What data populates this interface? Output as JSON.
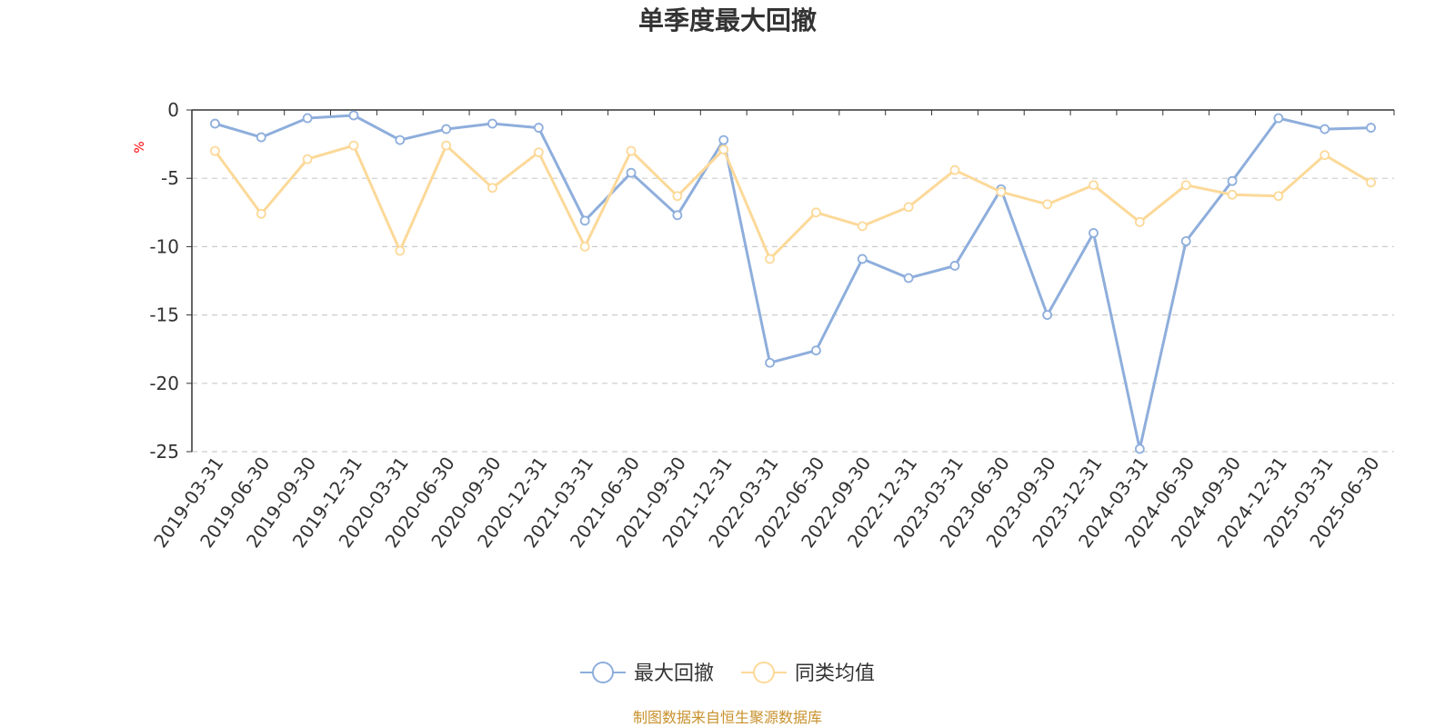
{
  "chart_data": {
    "type": "line",
    "title": "单季度最大回撤",
    "ylabel": "%",
    "ylim": [
      -25,
      0
    ],
    "yticks": [
      0,
      -5,
      -10,
      -15,
      -20,
      -25
    ],
    "grid": true,
    "legend_position": "bottom-center",
    "x": [
      "2019-03-31",
      "2019-06-30",
      "2019-09-30",
      "2019-12-31",
      "2020-03-31",
      "2020-06-30",
      "2020-09-30",
      "2020-12-31",
      "2021-03-31",
      "2021-06-30",
      "2021-09-30",
      "2021-12-31",
      "2022-03-31",
      "2022-06-30",
      "2022-09-30",
      "2022-12-31",
      "2023-03-31",
      "2023-06-30",
      "2023-09-30",
      "2023-12-31",
      "2024-03-31",
      "2024-06-30",
      "2024-09-30",
      "2024-12-31",
      "2025-03-31",
      "2025-06-30"
    ],
    "series": [
      {
        "name": "最大回撤",
        "color": "#8eaedc",
        "values": [
          -1.0,
          -2.0,
          -0.6,
          -0.4,
          -2.2,
          -1.4,
          -1.0,
          -1.3,
          -8.1,
          -4.6,
          -7.7,
          -2.2,
          -18.5,
          -17.6,
          -10.9,
          -12.3,
          -11.4,
          -5.8,
          -15.0,
          -9.0,
          -24.8,
          -9.6,
          -5.2,
          -0.6,
          -1.4,
          -1.3
        ]
      },
      {
        "name": "同类均值",
        "color": "#fcd999",
        "values": [
          -3.0,
          -7.6,
          -3.6,
          -2.6,
          -10.3,
          -2.6,
          -5.7,
          -3.1,
          -10.0,
          -3.0,
          -6.3,
          -2.9,
          -10.9,
          -7.5,
          -8.5,
          -7.1,
          -4.4,
          -6.0,
          -6.9,
          -5.5,
          -8.2,
          -5.5,
          -6.2,
          -6.3,
          -3.3,
          -5.3
        ]
      }
    ],
    "source": "制图数据来自恒生聚源数据库"
  }
}
